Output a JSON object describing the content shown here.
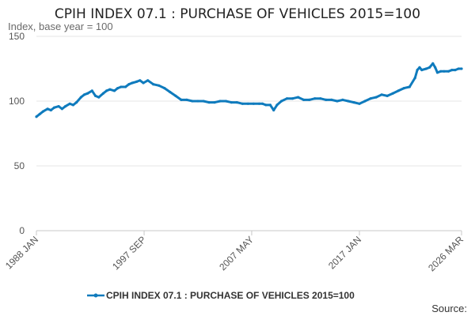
{
  "chart_data": {
    "type": "line",
    "title": "CPIH INDEX 07.1 : PURCHASE OF VEHICLES 2015=100",
    "ylabel": "Index, base year = 100",
    "xlabel": "",
    "ylim": [
      0,
      150
    ],
    "y_ticks": [
      "0",
      "50",
      "100",
      "150"
    ],
    "x_ticks": [
      {
        "label": "1988 JAN",
        "x": 1988.0
      },
      {
        "label": "1997 SEP",
        "x": 1997.67
      },
      {
        "label": "2007 MAY",
        "x": 2007.33
      },
      {
        "label": "2017 JAN",
        "x": 2017.0
      },
      {
        "label": "2026 MAR",
        "x": 2026.17
      }
    ],
    "xlim": [
      1988.0,
      2026.17
    ],
    "grid": true,
    "legend_position": "bottom",
    "color": "#0f7bbd",
    "series": [
      {
        "name": "CPIH INDEX 07.1 : PURCHASE OF VEHICLES 2015=100",
        "x": [
          1988.0,
          1988.3,
          1988.6,
          1989.0,
          1989.3,
          1989.6,
          1990.0,
          1990.3,
          1990.6,
          1991.0,
          1991.3,
          1991.6,
          1992.0,
          1992.3,
          1992.6,
          1993.0,
          1993.3,
          1993.6,
          1994.0,
          1994.3,
          1994.6,
          1995.0,
          1995.3,
          1995.6,
          1996.0,
          1996.3,
          1996.6,
          1997.0,
          1997.3,
          1997.6,
          1998.0,
          1998.5,
          1999.0,
          1999.5,
          2000.0,
          2000.5,
          2001.0,
          2001.5,
          2002.0,
          2002.5,
          2003.0,
          2003.5,
          2004.0,
          2004.5,
          2005.0,
          2005.5,
          2006.0,
          2006.5,
          2007.0,
          2007.5,
          2008.0,
          2008.3,
          2008.6,
          2009.0,
          2009.3,
          2009.6,
          2010.0,
          2010.5,
          2011.0,
          2011.5,
          2012.0,
          2012.5,
          2013.0,
          2013.5,
          2014.0,
          2014.5,
          2015.0,
          2015.5,
          2016.0,
          2016.5,
          2017.0,
          2017.5,
          2018.0,
          2018.5,
          2019.0,
          2019.5,
          2020.0,
          2020.5,
          2021.0,
          2021.5,
          2022.0,
          2022.2,
          2022.4,
          2022.6,
          2023.0,
          2023.3,
          2023.6,
          2023.8,
          2024.0,
          2024.3,
          2024.6,
          2025.0,
          2025.3,
          2025.6,
          2025.9,
          2026.17
        ],
        "values": [
          88,
          90,
          92,
          94,
          93,
          95,
          96,
          94,
          96,
          98,
          97,
          99,
          103,
          105,
          106,
          108,
          104,
          103,
          106,
          108,
          109,
          108,
          110,
          111,
          111,
          113,
          114,
          115,
          116,
          114,
          116,
          113,
          112,
          110,
          107,
          104,
          101,
          101,
          100,
          100,
          100,
          99,
          99,
          100,
          100,
          99,
          99,
          98,
          98,
          98,
          98,
          98,
          97,
          97,
          93,
          97,
          100,
          102,
          102,
          103,
          101,
          101,
          102,
          102,
          101,
          101,
          100,
          101,
          100,
          99,
          98,
          100,
          102,
          103,
          105,
          104,
          106,
          108,
          110,
          111,
          118,
          124,
          126,
          124,
          125,
          126,
          129,
          126,
          122,
          123,
          123,
          123,
          124,
          124,
          125,
          125
        ]
      }
    ]
  },
  "legend": {
    "label": "CPIH INDEX 07.1 : PURCHASE OF VEHICLES 2015=100"
  },
  "source": {
    "label": "Source:"
  }
}
